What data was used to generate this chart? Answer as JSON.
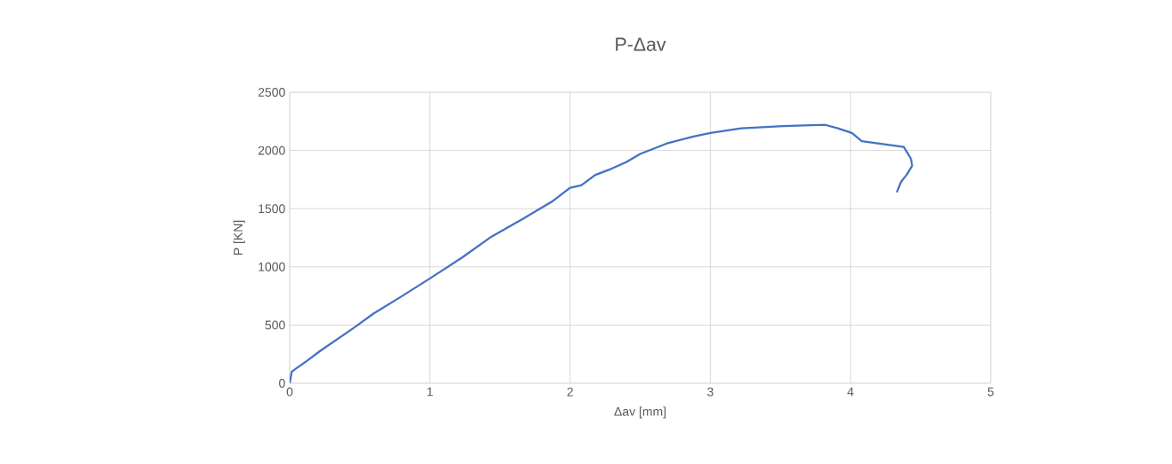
{
  "chart_data": {
    "type": "line",
    "title": "P-Δav",
    "xlabel": "Δav [mm]",
    "ylabel": "P [KN]",
    "series": [
      {
        "color": "#4472c4",
        "x": [
          0,
          0.015,
          0.05,
          0.12,
          0.22,
          0.45,
          0.6,
          0.79,
          1.0,
          1.23,
          1.44,
          1.66,
          1.87,
          2.0,
          2.08,
          2.18,
          2.29,
          2.4,
          2.5,
          2.69,
          2.88,
          3.0,
          3.22,
          3.52,
          3.82,
          3.91,
          4.01,
          4.08,
          4.38,
          4.43,
          4.44,
          4.4,
          4.36,
          4.33
        ],
        "values": [
          0,
          100,
          130,
          190,
          280,
          470,
          600,
          740,
          900,
          1080,
          1260,
          1410,
          1560,
          1680,
          1700,
          1790,
          1840,
          1900,
          1970,
          2060,
          2120,
          2150,
          2190,
          2210,
          2220,
          2190,
          2150,
          2080,
          2030,
          1930,
          1870,
          1790,
          1730,
          1640
        ]
      }
    ],
    "xlim": [
      0,
      5
    ],
    "ylim": [
      0,
      2500
    ],
    "xticks": [
      0,
      1,
      2,
      3,
      4,
      5
    ],
    "yticks": [
      0,
      500,
      1000,
      1500,
      2000,
      2500
    ],
    "grid": true,
    "marker": "none",
    "line_style": "solid"
  }
}
